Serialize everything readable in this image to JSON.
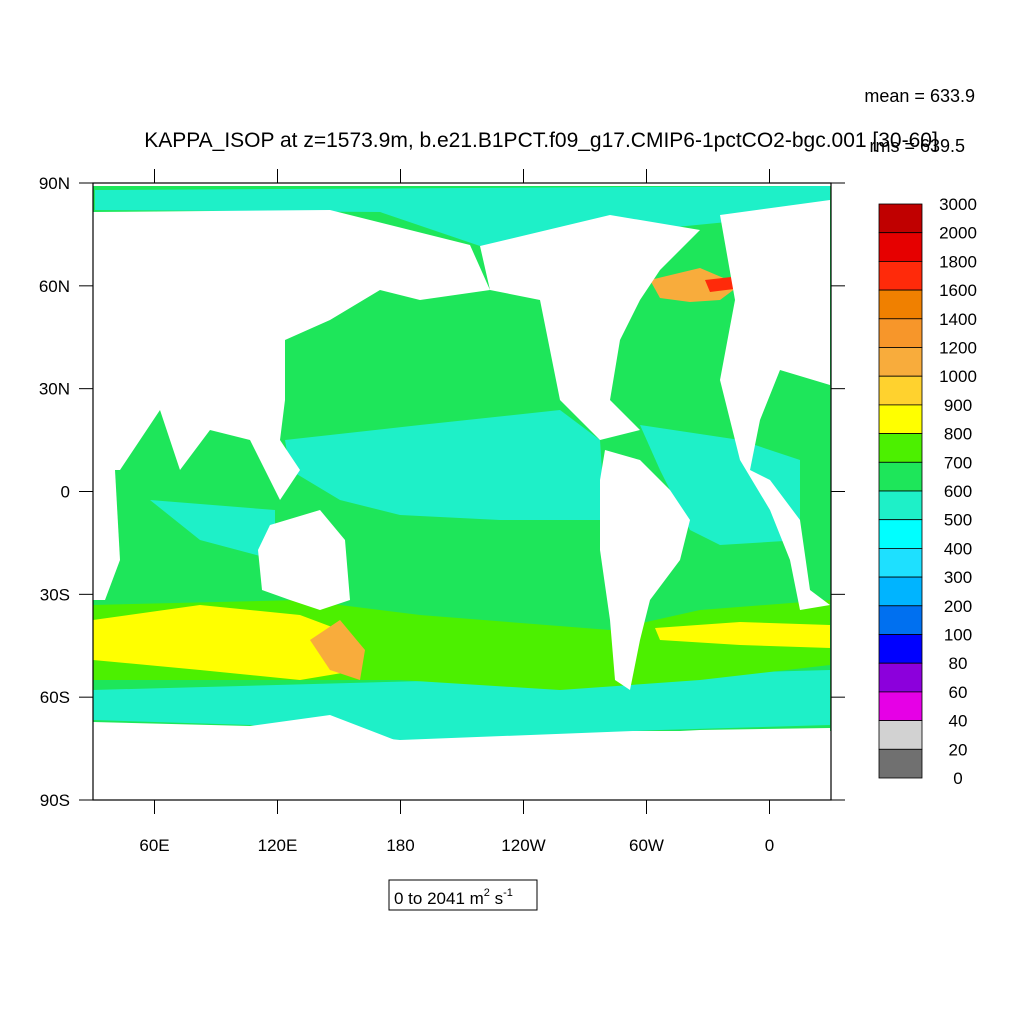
{
  "header": {
    "title": "KAPPA_ISOP at z=1573.9m, b.e21.B1PCT.f09_g17.CMIP6-1pctCO2-bgc.001 [30-60]",
    "stats": [
      "mean = 633.9",
      "rms = 639.5"
    ]
  },
  "map": {
    "lon_range": [
      30,
      390
    ],
    "lat_range": [
      -90,
      90
    ],
    "lon_ticks": [
      {
        "value": 60,
        "label": "60E"
      },
      {
        "value": 120,
        "label": "120E"
      },
      180,
      {
        "value": 240,
        "label": "120W"
      },
      {
        "value": 300,
        "label": "60W"
      },
      {
        "value": 360,
        "label": "0"
      }
    ],
    "lat_ticks": [
      {
        "value": 90,
        "label": "90N"
      },
      {
        "value": 60,
        "label": "60N"
      },
      {
        "value": 30,
        "label": "30N"
      },
      0,
      {
        "value": -30,
        "label": "30S"
      },
      {
        "value": -60,
        "label": "60S"
      },
      {
        "value": -90,
        "label": "90S"
      }
    ]
  },
  "colorbar": {
    "levels": [
      3000,
      2000,
      1800,
      1600,
      1400,
      1200,
      1000,
      900,
      800,
      700,
      600,
      500,
      400,
      300,
      200,
      100,
      80,
      60,
      40,
      20,
      0
    ],
    "colors": [
      "#c00000",
      "#e60000",
      "#ff2a0a",
      "#f08000",
      "#f7962a",
      "#f8ac3c",
      "#ffd22e",
      "#ffff00",
      "#4cf000",
      "#1ee65a",
      "#1ef0c8",
      "#00ffff",
      "#1ee0ff",
      "#00b4ff",
      "#0070f0",
      "#0000ff",
      "#8c00dc",
      "#e600e6",
      "#d2d2d2",
      "#707070"
    ]
  },
  "range_label": {
    "text": "0 to 2041 m",
    "exp1": "2",
    "mid": " s",
    "exp2": "-1"
  }
}
